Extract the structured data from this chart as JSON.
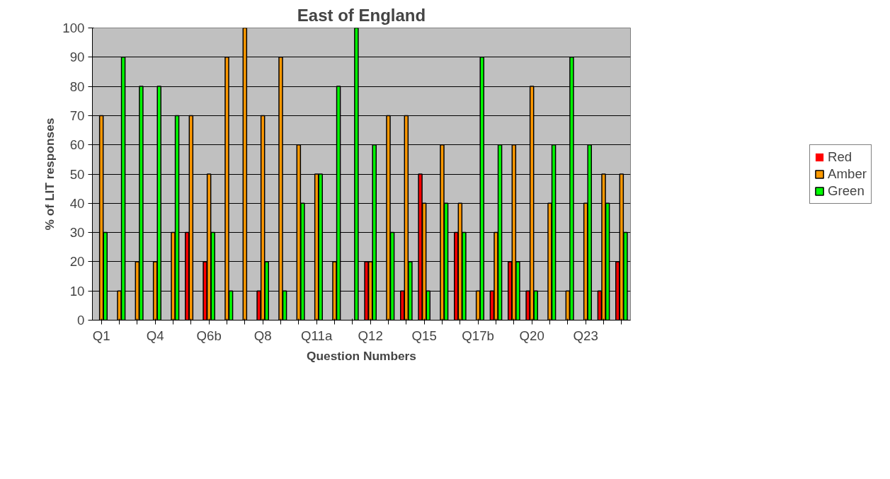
{
  "chart_data": {
    "type": "bar",
    "title": "East of England",
    "xlabel": "Question Numbers",
    "ylabel": "% of LIT responses",
    "categories": [
      "Q1",
      null,
      null,
      "Q4",
      null,
      null,
      "Q6b",
      null,
      null,
      "Q8",
      null,
      null,
      "Q11a",
      null,
      null,
      "Q12",
      null,
      null,
      "Q15",
      null,
      null,
      "Q17b",
      null,
      null,
      "Q20",
      null,
      null,
      "Q23",
      null,
      null
    ],
    "series": [
      {
        "name": "Red",
        "color": "#ff0000",
        "values": [
          0,
          0,
          0,
          0,
          0,
          30,
          20,
          0,
          0,
          10,
          0,
          0,
          0,
          0,
          0,
          20,
          0,
          10,
          50,
          0,
          30,
          0,
          10,
          20,
          10,
          0,
          0,
          0,
          10,
          20
        ]
      },
      {
        "name": "Amber",
        "color": "#ff9900",
        "values": [
          70,
          10,
          20,
          20,
          30,
          70,
          50,
          90,
          100,
          70,
          90,
          60,
          50,
          20,
          0,
          20,
          70,
          70,
          40,
          60,
          40,
          10,
          30,
          60,
          80,
          40,
          10,
          40,
          50,
          50
        ]
      },
      {
        "name": "Green",
        "color": "#00ff00",
        "values": [
          30,
          90,
          80,
          80,
          70,
          0,
          30,
          10,
          0,
          20,
          10,
          40,
          50,
          80,
          100,
          60,
          30,
          20,
          10,
          40,
          30,
          90,
          60,
          20,
          10,
          60,
          90,
          60,
          40,
          30
        ]
      }
    ],
    "ylim": [
      0,
      100
    ],
    "yticks": [
      0,
      10,
      20,
      30,
      40,
      50,
      60,
      70,
      80,
      90,
      100
    ],
    "grid": "y",
    "legend": "right"
  }
}
